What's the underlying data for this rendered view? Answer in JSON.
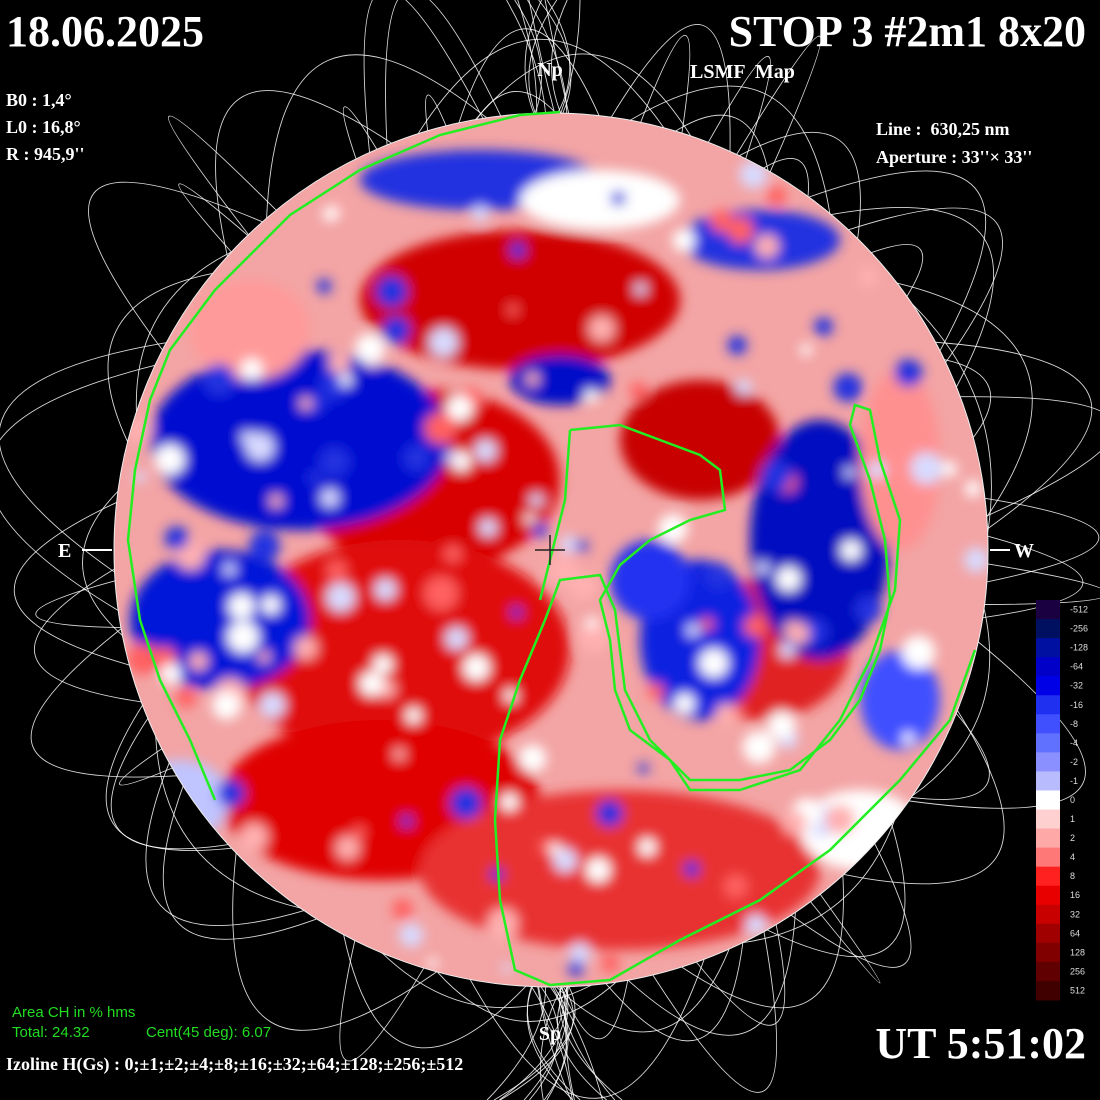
{
  "header": {
    "date": "18.06.2025",
    "title": "STOP 3 #2m1 8x20",
    "subtitle": "LSMF  Map",
    "time": "UT 5:51:02"
  },
  "parameters": {
    "b0": "B0 : 1,4°",
    "l0": "L0 : 16,8°",
    "r": "R : 945,9''",
    "line": "Line :  630,25 nm",
    "aperture": "Aperture : 33''× 33''"
  },
  "orientation": {
    "north": "Np",
    "south": "Sp",
    "east": "E",
    "west": "W"
  },
  "coronal_holes": {
    "title": "Area CH in % hms",
    "total": "Total: 24.32",
    "central": "Cent(45 deg): 6.07"
  },
  "isolines": "Izoline H(Gs) : 0;±1;±2;±4;±8;±16;±32;±64;±128;±256;±512",
  "colorbar": {
    "labels": [
      "-512",
      "-256",
      "-128",
      "-64",
      "-32",
      "-16",
      "-8",
      "-4",
      "-2",
      "-1",
      "0",
      "1",
      "2",
      "4",
      "8",
      "16",
      "32",
      "64",
      "128",
      "256",
      "512"
    ]
  }
}
